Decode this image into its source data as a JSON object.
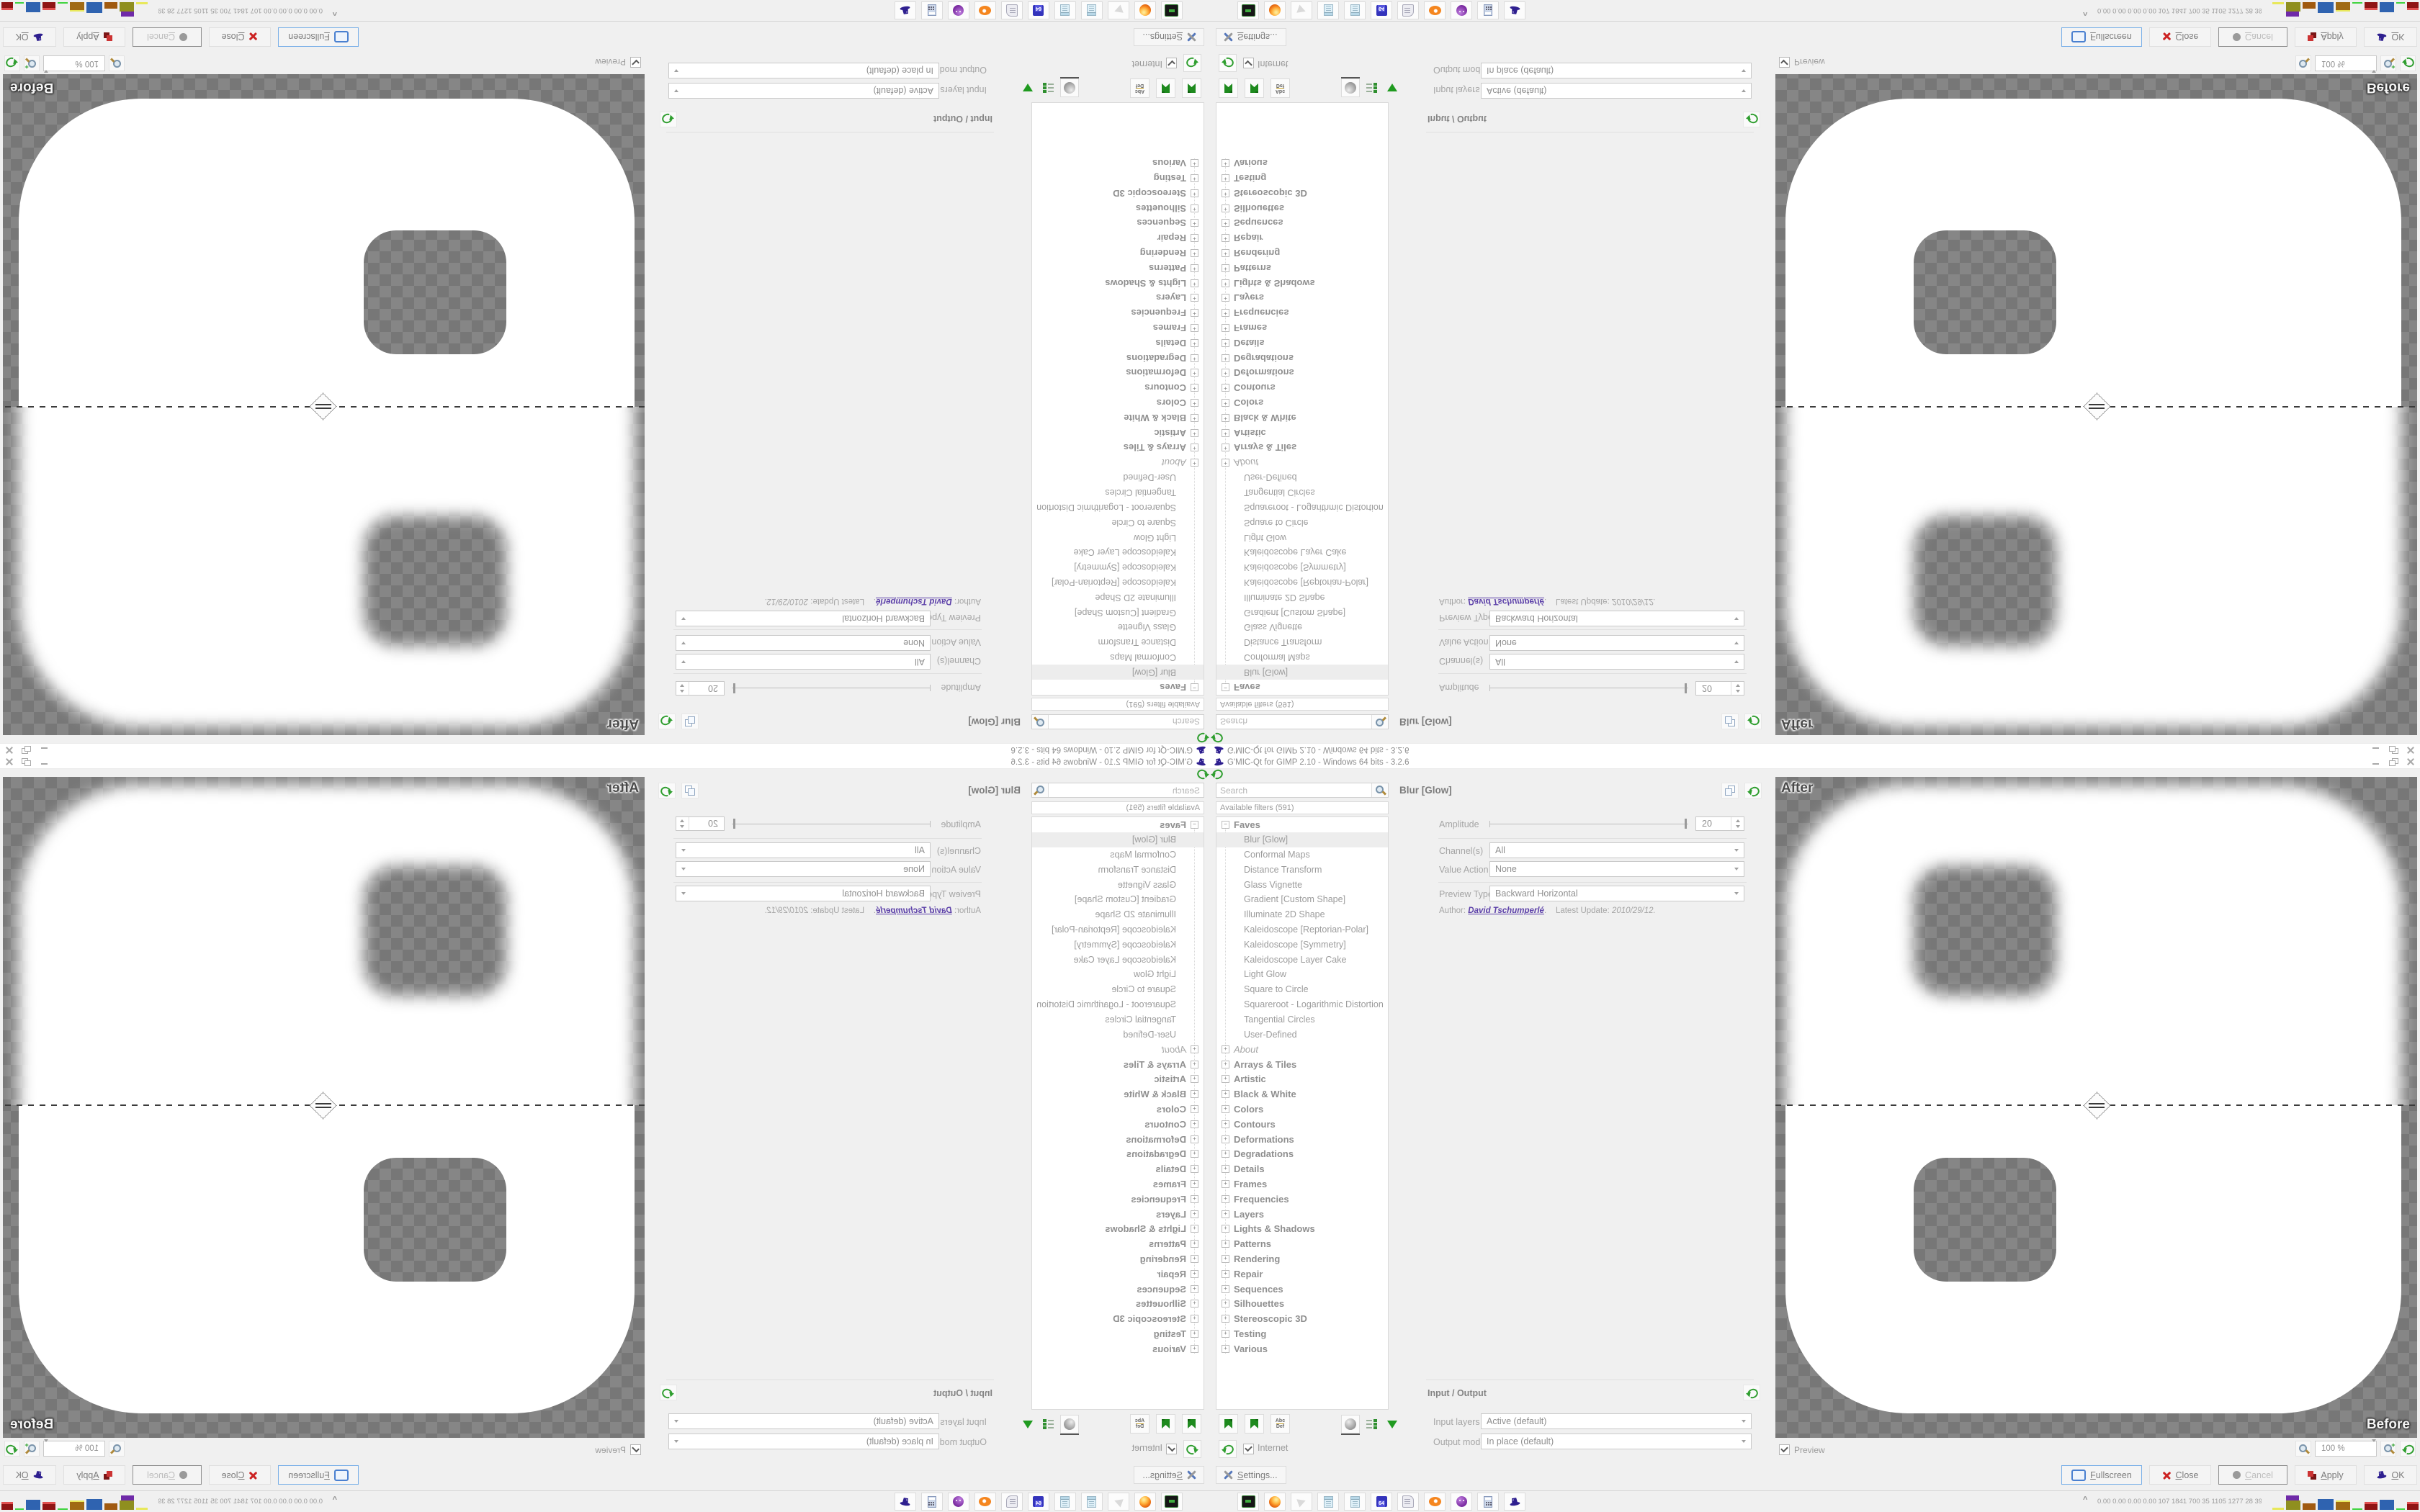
{
  "window": {
    "title": "G'MIC-Qt for GIMP 2.10 - Windows 64 bits - 3.2.6"
  },
  "filters": {
    "search_placeholder": "Search",
    "available_header": "Available filters (591)",
    "faves_label": "Faves",
    "collapse_glyph": "−",
    "expand_glyph": "+",
    "selected_filter": "Blur [Glow]",
    "fave_items": [
      "Blur [Glow]",
      "Conformal Maps",
      "Distance Transform",
      "Glass Vignette",
      "Gradient [Custom Shape]",
      "Illuminate 2D Shape",
      "Kaleidoscope [Reptorian-Polar]",
      "Kaleidoscope [Symmetry]",
      "Kaleidoscope Layer Cake",
      "Light Glow",
      "Square to Circle",
      "Squareroot - Logarithmic Distortion",
      "Tangential Circles",
      "User-Defined"
    ],
    "categories": [
      "About",
      "Arrays & Tiles",
      "Artistic",
      "Black & White",
      "Colors",
      "Contours",
      "Deformations",
      "Degradations",
      "Details",
      "Frames",
      "Frequencies",
      "Layers",
      "Lights & Shadows",
      "Patterns",
      "Rendering",
      "Repair",
      "Sequences",
      "Silhouettes",
      "Stereoscopic 3D",
      "Testing",
      "Various"
    ],
    "rename_icon_top": "Abc",
    "rename_icon_bottom": "Def",
    "internet_label": "Internet"
  },
  "params": {
    "title": "Blur [Glow]",
    "amplitude_label": "Amplitude",
    "amplitude_value": "20",
    "channels_label": "Channel(s)",
    "channels_value": "All",
    "value_action_label": "Value Action",
    "value_action_value": "None",
    "preview_type_label": "Preview Type",
    "preview_type_value": "Backward Horizontal",
    "author_label": "Author:",
    "author_name": "David Tschumperlé",
    "author_suffix": ".",
    "update_label": "Latest Update:",
    "update_value": "2010/29/12."
  },
  "io": {
    "header": "Input / Output",
    "input_label": "Input layers",
    "input_value": "Active (default)",
    "output_label": "Output mode",
    "output_value": "In place (default)"
  },
  "preview": {
    "after_label": "After",
    "before_label": "Before",
    "preview_checkbox_label": "Preview",
    "zoom_value": "100 %"
  },
  "actions": {
    "settings": "Settings...",
    "fullscreen": "Fullscreen",
    "close": "Close",
    "cancel": "Cancel",
    "apply": "Apply",
    "ok": "OK"
  },
  "taskbar": {
    "tray_chevron": "^",
    "monitor_text": "0.00 0.00 0.00 0.00  107 1841 700  35  1105 1277  28  39  40  37  6000 7548",
    "floppy_label": "64"
  },
  "colors": {
    "accent_green": "#2f9e2f",
    "link_purple": "#5b3fa8",
    "selection_gray": "#ededed",
    "checker_light": "#868686",
    "checker_dark": "#777777"
  }
}
